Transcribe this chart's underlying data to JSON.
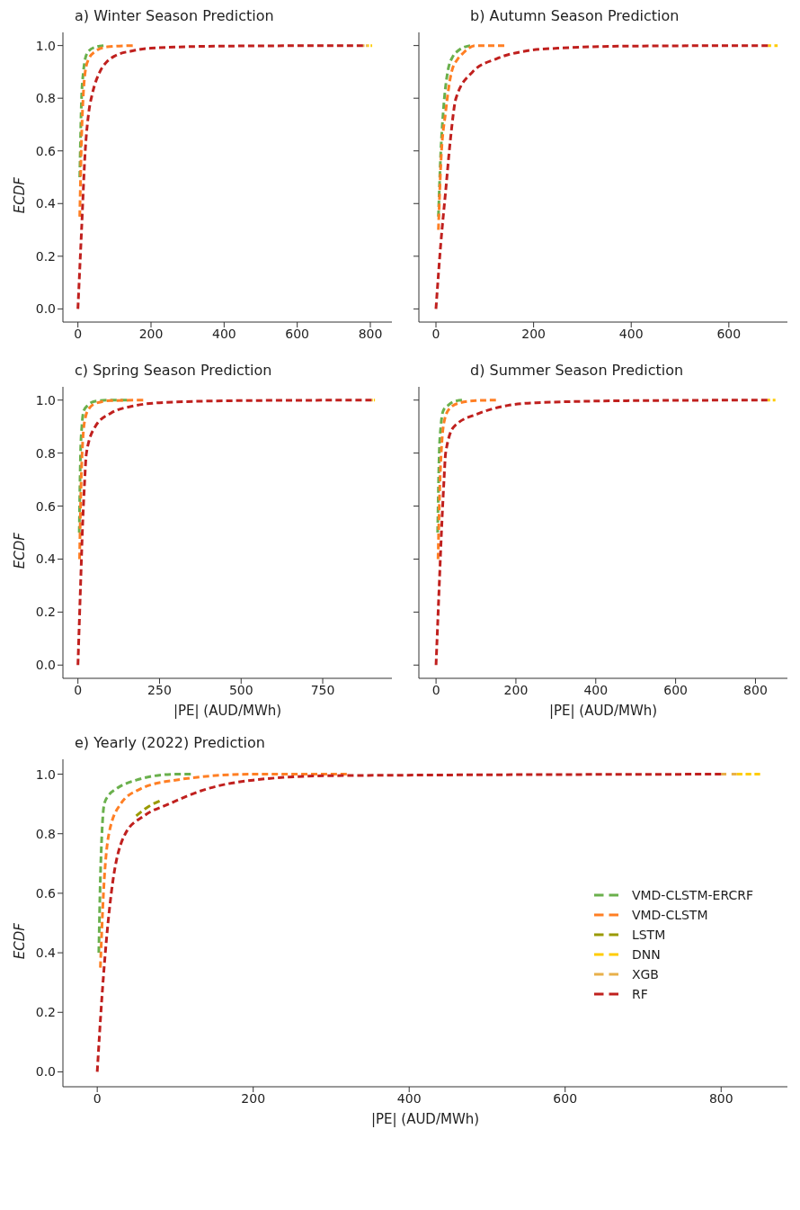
{
  "chart_data": [
    {
      "type": "line",
      "title": "a) Winter Season Prediction",
      "ylabel": "ECDF",
      "xlim": [
        -41,
        859
      ],
      "xticks": [
        0,
        200,
        400,
        600,
        800
      ],
      "ylim": [
        -0.05,
        1.05
      ],
      "yticks": [
        {
          "value": 0,
          "label": "0.0"
        },
        {
          "value": 0.2,
          "label": "0.2"
        },
        {
          "value": 0.4,
          "label": "0.4"
        },
        {
          "value": 0.6,
          "label": "0.6"
        },
        {
          "value": 0.8,
          "label": "0.8"
        },
        {
          "value": 1,
          "label": "1.0"
        }
      ],
      "line_style": "dashed",
      "series": [
        {
          "color": "#6ab04c",
          "x": [
            5,
            10,
            15,
            20,
            30,
            50,
            70
          ],
          "values": [
            0.5,
            0.8,
            0.9,
            0.95,
            0.98,
            0.995,
            1
          ]
        },
        {
          "color": "#ff7f24",
          "x": [
            5,
            10,
            15,
            20,
            30,
            50,
            80,
            150
          ],
          "values": [
            0.35,
            0.65,
            0.82,
            0.9,
            0.95,
            0.98,
            0.995,
            1
          ]
        },
        {
          "color": "#ffcc00",
          "x": [
            792,
            805
          ],
          "values": [
            1,
            1
          ]
        },
        {
          "color": "#e8b04a",
          "x": [
            780,
            792
          ],
          "values": [
            1,
            1
          ]
        },
        {
          "color": "#c0201e",
          "x": [
            0,
            10,
            20,
            30,
            40,
            60,
            80,
            100,
            150,
            200,
            400,
            780
          ],
          "values": [
            0,
            0.3,
            0.6,
            0.75,
            0.82,
            0.9,
            0.94,
            0.96,
            0.98,
            0.99,
            0.998,
            1
          ]
        }
      ]
    },
    {
      "type": "line",
      "title": "b) Autumn Season Prediction",
      "tick_labels": "x",
      "xlim": [
        -35,
        720
      ],
      "xticks": [
        0,
        200,
        400,
        600
      ],
      "ylim": [
        -0.05,
        1.05
      ],
      "yticks": [
        0,
        0.2,
        0.4,
        0.6,
        0.8,
        1
      ],
      "line_style": "dashed",
      "series": [
        {
          "color": "#6ab04c",
          "x": [
            5,
            10,
            15,
            24,
            35,
            45,
            70
          ],
          "values": [
            0.35,
            0.6,
            0.75,
            0.9,
            0.96,
            0.98,
            1
          ]
        },
        {
          "color": "#ff7f24",
          "x": [
            5,
            10,
            20,
            32,
            45,
            55,
            80,
            140
          ],
          "values": [
            0.3,
            0.55,
            0.75,
            0.9,
            0.95,
            0.97,
            1,
            1
          ]
        },
        {
          "color": "#ffcc00",
          "x": [
            680,
            700
          ],
          "values": [
            1,
            1
          ]
        },
        {
          "color": "#c0201e",
          "x": [
            0,
            10,
            20,
            30,
            41,
            75,
            124,
            186,
            250,
            400,
            680
          ],
          "values": [
            0,
            0.25,
            0.45,
            0.65,
            0.8,
            0.9,
            0.95,
            0.98,
            0.99,
            0.998,
            1
          ]
        }
      ]
    },
    {
      "type": "line",
      "title": "c) Spring Season Prediction",
      "xlabel": "|PE| (AUD/MWh)",
      "ylabel": "ECDF",
      "xlim": [
        -46,
        962
      ],
      "xticks": [
        0,
        250,
        500,
        750
      ],
      "ylim": [
        -0.05,
        1.05
      ],
      "yticks": [
        {
          "value": 0,
          "label": "0.0"
        },
        {
          "value": 0.2,
          "label": "0.2"
        },
        {
          "value": 0.4,
          "label": "0.4"
        },
        {
          "value": 0.6,
          "label": "0.6"
        },
        {
          "value": 0.8,
          "label": "0.8"
        },
        {
          "value": 1,
          "label": "1.0"
        }
      ],
      "line_style": "dashed",
      "series": [
        {
          "color": "#6ab04c",
          "x": [
            4,
            8,
            12,
            18,
            30,
            50,
            100,
            150
          ],
          "values": [
            0.5,
            0.8,
            0.9,
            0.96,
            0.98,
            0.995,
            1,
            1
          ]
        },
        {
          "color": "#ff7f24",
          "x": [
            5,
            10,
            15,
            22,
            35,
            60,
            100,
            200
          ],
          "values": [
            0.4,
            0.7,
            0.85,
            0.93,
            0.97,
            0.99,
            0.998,
            1
          ]
        },
        {
          "color": "#ffcc00",
          "x": [
            900,
            910
          ],
          "values": [
            1,
            1
          ]
        },
        {
          "color": "#c0201e",
          "x": [
            0,
            8,
            15,
            20,
            26,
            53,
            100,
            180,
            250,
            500,
            900
          ],
          "values": [
            0,
            0.3,
            0.55,
            0.68,
            0.8,
            0.9,
            0.95,
            0.98,
            0.99,
            0.998,
            1
          ]
        }
      ]
    },
    {
      "type": "line",
      "title": "d) Summer Season Prediction",
      "xlabel": "|PE| (AUD/MWh)",
      "tick_labels": "x",
      "xlim": [
        -43,
        880
      ],
      "xticks": [
        0,
        200,
        400,
        600,
        800
      ],
      "ylim": [
        -0.05,
        1.05
      ],
      "yticks": [
        0,
        0.2,
        0.4,
        0.6,
        0.8,
        1
      ],
      "line_style": "dashed",
      "series": [
        {
          "color": "#6ab04c",
          "x": [
            4,
            8,
            12,
            18,
            30,
            45,
            65
          ],
          "values": [
            0.5,
            0.8,
            0.9,
            0.96,
            0.98,
            0.995,
            1
          ]
        },
        {
          "color": "#ff7f24",
          "x": [
            5,
            10,
            15,
            22,
            35,
            60,
            100,
            150
          ],
          "values": [
            0.4,
            0.7,
            0.85,
            0.93,
            0.97,
            0.99,
            0.998,
            1
          ]
        },
        {
          "color": "#ffcc00",
          "x": [
            830,
            850
          ],
          "values": [
            1,
            1
          ]
        },
        {
          "color": "#c0201e",
          "x": [
            0,
            8,
            15,
            20,
            24,
            45,
            108,
            180,
            250,
            500,
            830
          ],
          "values": [
            0,
            0.3,
            0.55,
            0.7,
            0.8,
            0.9,
            0.95,
            0.98,
            0.99,
            0.998,
            1
          ]
        }
      ]
    },
    {
      "type": "line",
      "title": "e) Yearly (2022) Prediction",
      "xlabel": "|PE| (AUD/MWh)",
      "ylabel": "ECDF",
      "xlim": [
        -44,
        885
      ],
      "xticks": [
        0,
        200,
        400,
        600,
        800
      ],
      "ylim": [
        -0.05,
        1.05
      ],
      "yticks": [
        {
          "value": 0,
          "label": "0.0"
        },
        {
          "value": 0.2,
          "label": "0.2"
        },
        {
          "value": 0.4,
          "label": "0.4"
        },
        {
          "value": 0.6,
          "label": "0.6"
        },
        {
          "value": 0.8,
          "label": "0.8"
        },
        {
          "value": 1,
          "label": "1.0"
        }
      ],
      "line_style": "dashed",
      "legend": "center right",
      "series": [
        {
          "name": "VMD-CLSTM-ERCRF",
          "color": "#6ab04c",
          "x": [
            2,
            4,
            6,
            9,
            15,
            24,
            50,
            100,
            120
          ],
          "values": [
            0.4,
            0.65,
            0.8,
            0.9,
            0.93,
            0.95,
            0.98,
            1,
            1
          ]
        },
        {
          "name": "VMD-CLSTM",
          "color": "#ff7f24",
          "x": [
            4,
            8,
            15,
            30,
            55,
            100,
            200,
            320
          ],
          "values": [
            0.35,
            0.6,
            0.8,
            0.9,
            0.95,
            0.98,
            1,
            1
          ]
        },
        {
          "name": "LSTM",
          "color": "#9a9a00",
          "x": [
            50,
            65,
            80
          ],
          "values": [
            0.86,
            0.89,
            0.91
          ]
        },
        {
          "name": "DNN",
          "color": "#ffcc00",
          "x": [
            820,
            850
          ],
          "values": [
            1,
            1
          ]
        },
        {
          "name": "XGB",
          "color": "#e8b04a",
          "x": [
            800,
            820
          ],
          "values": [
            1,
            1
          ]
        },
        {
          "name": "RF",
          "color": "#c0201e",
          "x": [
            0,
            6,
            12,
            18,
            36,
            60,
            92,
            140,
            200,
            300,
            800
          ],
          "values": [
            0,
            0.25,
            0.45,
            0.6,
            0.8,
            0.86,
            0.9,
            0.95,
            0.98,
            0.995,
            1
          ]
        }
      ]
    }
  ]
}
